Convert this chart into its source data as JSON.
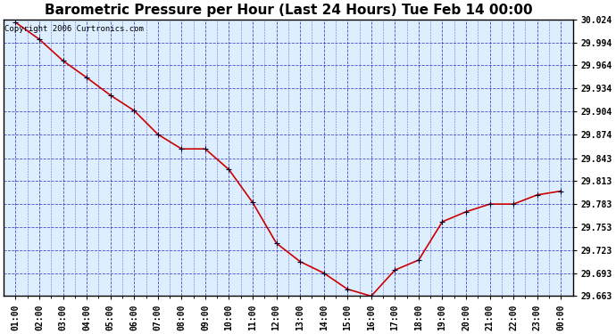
{
  "title": "Barometric Pressure per Hour (Last 24 Hours) Tue Feb 14 00:00",
  "copyright": "Copyright 2006 Curtronics.com",
  "x_labels": [
    "01:00",
    "02:00",
    "03:00",
    "04:00",
    "05:00",
    "06:00",
    "07:00",
    "08:00",
    "09:00",
    "10:00",
    "11:00",
    "12:00",
    "13:00",
    "14:00",
    "15:00",
    "16:00",
    "17:00",
    "18:00",
    "19:00",
    "20:00",
    "21:00",
    "22:00",
    "23:00",
    "00:00"
  ],
  "y_values": [
    30.02,
    29.998,
    29.97,
    29.948,
    29.925,
    29.905,
    29.874,
    29.855,
    29.855,
    29.828,
    29.785,
    29.732,
    29.708,
    29.693,
    29.672,
    29.663,
    29.697,
    29.71,
    29.76,
    29.773,
    29.783,
    29.783,
    29.795,
    29.8
  ],
  "line_color": "#cc0000",
  "marker_color": "#000033",
  "plot_bg_color": "#ddeeff",
  "fig_bg_color": "#ffffff",
  "grid_color": "#2222bb",
  "border_color": "#000000",
  "ylim_min": 29.663,
  "ylim_max": 30.024,
  "yticks": [
    29.663,
    29.693,
    29.723,
    29.753,
    29.783,
    29.813,
    29.843,
    29.874,
    29.904,
    29.934,
    29.964,
    29.994,
    30.024
  ],
  "title_fontsize": 11,
  "copyright_fontsize": 6.5,
  "tick_fontsize": 7
}
